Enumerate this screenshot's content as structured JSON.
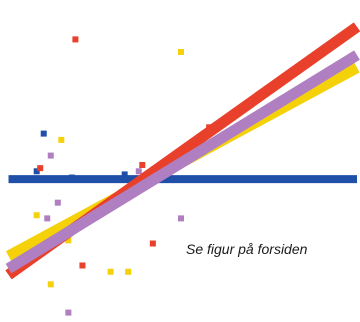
{
  "caption": "Se figur på forsiden",
  "chart_data": {
    "type": "scatter",
    "title": "",
    "xlabel": "",
    "ylabel": "",
    "xlim": [
      0,
      10
    ],
    "ylim": [
      0,
      10
    ],
    "grid": false,
    "legend": "none",
    "series": [
      {
        "color": "#1f4fa8",
        "line": [
          [
            0.1,
            4.55
          ],
          [
            10,
            4.55
          ]
        ],
        "points": [
          [
            1.1,
            6.0
          ],
          [
            1.9,
            4.6
          ],
          [
            3.4,
            4.7
          ],
          [
            0.9,
            4.8
          ],
          [
            4.0,
            4.4
          ]
        ]
      },
      {
        "color": "#e8402a",
        "line": [
          [
            0.1,
            1.5
          ],
          [
            10,
            9.4
          ]
        ],
        "points": [
          [
            2.0,
            9.0
          ],
          [
            1.0,
            4.9
          ],
          [
            2.5,
            3.3
          ],
          [
            3.9,
            5.0
          ],
          [
            5.8,
            6.2
          ],
          [
            2.2,
            1.8
          ],
          [
            4.2,
            2.5
          ],
          [
            1.2,
            2.8
          ]
        ]
      },
      {
        "color": "#f5d10a",
        "line": [
          [
            0.1,
            2.1
          ],
          [
            10,
            8.1
          ]
        ],
        "points": [
          [
            5.0,
            8.6
          ],
          [
            1.6,
            5.8
          ],
          [
            3.0,
            1.6
          ],
          [
            3.5,
            1.6
          ],
          [
            1.3,
            1.2
          ],
          [
            0.9,
            3.4
          ],
          [
            1.8,
            2.6
          ]
        ]
      },
      {
        "color": "#b07fc2",
        "line": [
          [
            0.1,
            1.7
          ],
          [
            10,
            8.5
          ]
        ],
        "points": [
          [
            1.3,
            5.3
          ],
          [
            1.5,
            3.8
          ],
          [
            1.2,
            3.3
          ],
          [
            1.8,
            0.3
          ],
          [
            3.8,
            4.8
          ],
          [
            5.0,
            3.3
          ]
        ]
      }
    ]
  }
}
